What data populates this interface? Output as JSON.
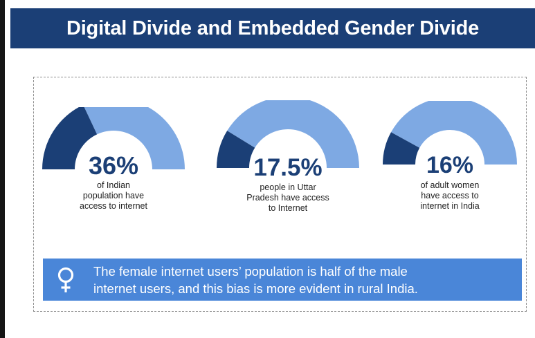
{
  "header": {
    "title": "Digital Divide and Embedded Gender Divide"
  },
  "colors": {
    "header_bg": "#1b3f76",
    "gauge_filled": "#1b3f76",
    "gauge_remaining": "#7ea9e3",
    "banner_bg": "#4a86d8",
    "value_text": "#1b3f76"
  },
  "chart_data": {
    "type": "gauge",
    "unit": "%",
    "range": [
      0,
      100
    ],
    "items": [
      {
        "value": 36,
        "value_label": "36%",
        "description": "of Indian population have access to internet",
        "desc_lines": [
          "of Indian",
          "population have",
          "access to internet"
        ]
      },
      {
        "value": 17.5,
        "value_label": "17.5%",
        "description": "people in Uttar Pradesh have access to Internet",
        "desc_lines": [
          "people in Uttar",
          "Pradesh have access",
          "to Internet"
        ]
      },
      {
        "value": 16,
        "value_label": "16%",
        "description": "of adult women have access to internet in India",
        "desc_lines": [
          "of adult women",
          "have access to",
          "internet in India"
        ]
      }
    ]
  },
  "banner": {
    "icon": "female-symbol-icon",
    "text_lines": [
      "The female internet users’ population is half of the male",
      "internet users, and this bias is more evident in rural India."
    ]
  }
}
